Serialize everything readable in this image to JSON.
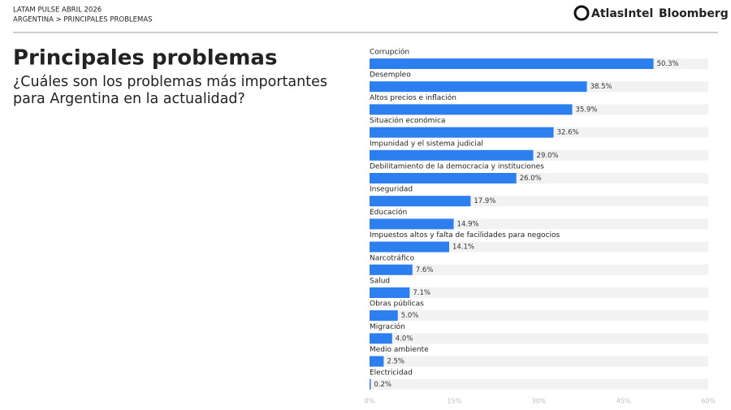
{
  "header": {
    "source": "LATAM PULSE ABRIL 2026",
    "breadcrumb": "ARGENTINA > PRINCIPALES PROBLEMAS",
    "brands": [
      "AtlasIntel",
      "Bloomberg"
    ]
  },
  "chart_data": {
    "type": "hbar",
    "title": "Principales problemas",
    "subtitle": [
      "¿Cuáles son los problemas más importantes",
      "para Argentina en la actualidad?"
    ],
    "categories": [
      "Corrupción",
      "Desempleo",
      "Altos precios e inflación",
      "Situación económica",
      "Impunidad y el sistema judicial",
      "Debilitamiento de la democracia y instituciones",
      "Inseguridad",
      "Educación",
      "Impuestos altos y falta de facilidades para negocios",
      "Narcotráfico",
      "Salud",
      "Obras públicas",
      "Migración",
      "Medio ambiente",
      "Electricidad"
    ],
    "values": [
      50.3,
      38.5,
      35.9,
      32.6,
      29.0,
      26.0,
      17.9,
      14.9,
      14.1,
      7.6,
      7.1,
      5.0,
      4.0,
      2.5,
      0.2
    ],
    "value_labels": [
      "50.3%",
      "38.5%",
      "35.9%",
      "32.6%",
      "29.0%",
      "26.0%",
      "17.9%",
      "14.9%",
      "14.1%",
      "7.6%",
      "7.1%",
      "5.0%",
      "4.0%",
      "2.5%",
      "0.2%"
    ],
    "color": "#2d7ff0",
    "xlim": [
      0,
      60
    ],
    "xticks": [
      {
        "value": 0,
        "label": "0%"
      },
      {
        "value": 15,
        "label": "15%"
      },
      {
        "value": 30,
        "label": "30%"
      },
      {
        "value": 45,
        "label": "45%"
      },
      {
        "value": 60,
        "label": "60%"
      }
    ],
    "grid": false
  }
}
